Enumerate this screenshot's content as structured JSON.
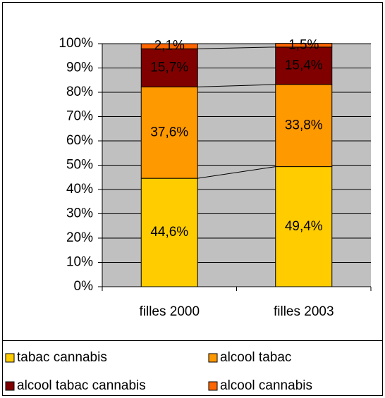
{
  "chart_data": {
    "type": "stacked_bar",
    "categories": [
      "filles 2000",
      "filles 2003"
    ],
    "series": [
      {
        "name": "tabac cannabis",
        "color": "#FFCC00",
        "values": [
          44.6,
          49.4
        ],
        "value_labels": [
          "44,6%",
          "49,4%"
        ]
      },
      {
        "name": "alcool tabac",
        "color": "#FF9900",
        "values": [
          37.6,
          33.8
        ],
        "value_labels": [
          "37,6%",
          "33,8%"
        ]
      },
      {
        "name": "alcool tabac cannabis",
        "color": "#800000",
        "values": [
          15.7,
          15.4
        ],
        "value_labels": [
          "15,7%",
          "15,4%"
        ]
      },
      {
        "name": "alcool cannabis",
        "color": "#FF6600",
        "values": [
          2.1,
          1.5
        ],
        "value_labels": [
          "2,1%",
          "1,5%"
        ]
      }
    ],
    "ylim": [
      0,
      100
    ],
    "yticks": [
      {
        "value": 0,
        "label": "0%"
      },
      {
        "value": 10,
        "label": "10%"
      },
      {
        "value": 20,
        "label": "20%"
      },
      {
        "value": 30,
        "label": "30%"
      },
      {
        "value": 40,
        "label": "40%"
      },
      {
        "value": 50,
        "label": "50%"
      },
      {
        "value": 60,
        "label": "60%"
      },
      {
        "value": 70,
        "label": "70%"
      },
      {
        "value": 80,
        "label": "80%"
      },
      {
        "value": 90,
        "label": "90%"
      },
      {
        "value": 100,
        "label": "100%"
      }
    ],
    "grid": true,
    "plot_background": "#C0C0C0",
    "legend": "bottom"
  }
}
